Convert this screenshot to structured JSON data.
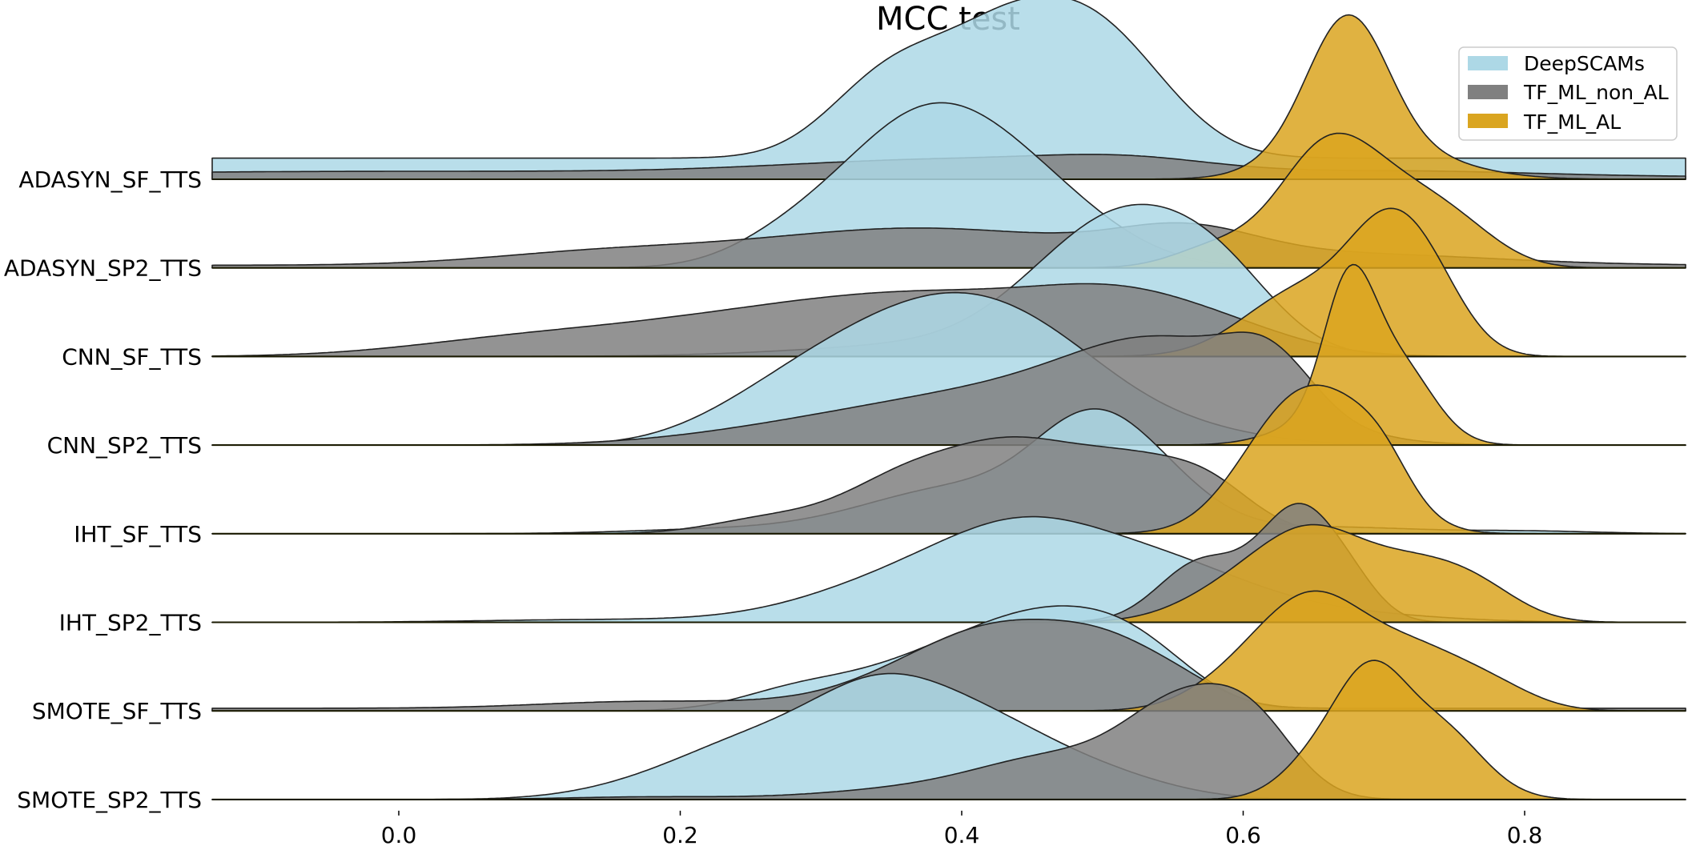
{
  "chart_data": {
    "type": "ridgeline-kde",
    "title": "MCC test",
    "xlabel": "",
    "ylabel": "",
    "xlim": [
      -0.13,
      0.91
    ],
    "xticks": [
      0.0,
      0.2,
      0.4,
      0.6,
      0.8
    ],
    "xtick_labels": [
      "0.0",
      "0.2",
      "0.4",
      "0.6",
      "0.8"
    ],
    "legend_position": "top-right",
    "grid": false,
    "series": [
      {
        "name": "DeepSCAMs",
        "color": "#add8e6"
      },
      {
        "name": "TF_ML_non_AL",
        "color": "#808080"
      },
      {
        "name": "TF_ML_AL",
        "color": "#daa520"
      }
    ],
    "rows": [
      {
        "label": "ADASYN_SF_TTS",
        "densities": {
          "DeepSCAMs": [
            [
              0.26,
              0.16,
              0.0
            ],
            [
              0.34,
              0.32,
              0.04
            ],
            [
              0.38,
              0.45,
              0.05
            ],
            [
              0.445,
              0.78,
              0.045
            ],
            [
              0.5,
              0.55,
              0.04
            ],
            [
              0.54,
              0.22,
              0.04
            ]
          ],
          "TF_ML_non_AL": [
            [
              -0.2,
              0.02,
              0.0
            ],
            [
              0.0,
              0.04,
              0.25
            ],
            [
              0.4,
              0.12,
              0.12
            ],
            [
              0.52,
              0.08,
              0.06
            ],
            [
              0.72,
              0.04,
              0.09
            ]
          ],
          "TF_ML_AL": [
            [
              0.675,
              1.0,
              0.028
            ],
            [
              0.7,
              0.22,
              0.05
            ],
            [
              0.64,
              0.1,
              0.03
            ]
          ]
        }
      },
      {
        "label": "ADASYN_SP2_TTS",
        "densities": {
          "DeepSCAMs": [
            [
              0.27,
              0.12,
              0.04
            ],
            [
              0.33,
              0.42,
              0.05
            ],
            [
              0.385,
              0.82,
              0.05
            ],
            [
              0.45,
              0.45,
              0.05
            ],
            [
              0.5,
              0.08,
              0.05
            ]
          ],
          "TF_ML_non_AL": [
            [
              0.0,
              0.02,
              0.0
            ],
            [
              0.14,
              0.08,
              0.08
            ],
            [
              0.37,
              0.28,
              0.12
            ],
            [
              0.56,
              0.2,
              0.05
            ],
            [
              0.68,
              0.08,
              0.1
            ]
          ],
          "TF_ML_AL": [
            [
              0.58,
              0.15,
              0.03
            ],
            [
              0.66,
              0.9,
              0.035
            ],
            [
              0.72,
              0.42,
              0.035
            ],
            [
              0.76,
              0.15,
              0.03
            ]
          ]
        }
      },
      {
        "label": "CNN_SF_TTS",
        "densities": {
          "DeepSCAMs": [
            [
              0.4,
              0.1,
              0.1
            ],
            [
              0.47,
              0.38,
              0.05
            ],
            [
              0.53,
              0.8,
              0.05
            ],
            [
              0.59,
              0.38,
              0.04
            ]
          ],
          "TF_ML_non_AL": [
            [
              0.08,
              0.1,
              0.08
            ],
            [
              0.24,
              0.24,
              0.1
            ],
            [
              0.4,
              0.4,
              0.1
            ],
            [
              0.52,
              0.3,
              0.06
            ],
            [
              0.6,
              0.1,
              0.05
            ]
          ],
          "TF_ML_AL": [
            [
              0.64,
              0.48,
              0.04
            ],
            [
              0.705,
              0.9,
              0.03
            ],
            [
              0.74,
              0.25,
              0.025
            ]
          ]
        }
      },
      {
        "label": "CNN_SP2_TTS",
        "densities": {
          "DeepSCAMs": [
            [
              0.25,
              0.18,
              0.05
            ],
            [
              0.32,
              0.55,
              0.055
            ],
            [
              0.4,
              0.8,
              0.055
            ],
            [
              0.47,
              0.4,
              0.05
            ],
            [
              0.54,
              0.15,
              0.06
            ]
          ],
          "TF_ML_non_AL": [
            [
              0.28,
              0.1,
              0.08
            ],
            [
              0.42,
              0.35,
              0.09
            ],
            [
              0.55,
              0.68,
              0.07
            ],
            [
              0.62,
              0.35,
              0.03
            ]
          ],
          "TF_ML_AL": [
            [
              0.675,
              1.02,
              0.018
            ],
            [
              0.71,
              0.6,
              0.025
            ],
            [
              0.65,
              0.15,
              0.03
            ]
          ]
        }
      },
      {
        "label": "IHT_SF_TTS",
        "densities": {
          "DeepSCAMs": [
            [
              0.22,
              0.03,
              0.06
            ],
            [
              0.4,
              0.35,
              0.07
            ],
            [
              0.49,
              0.65,
              0.04
            ],
            [
              0.54,
              0.3,
              0.04
            ],
            [
              0.66,
              0.05,
              0.06
            ],
            [
              0.8,
              0.02,
              0.05
            ]
          ],
          "TF_ML_non_AL": [
            [
              0.26,
              0.1,
              0.04
            ],
            [
              0.37,
              0.48,
              0.05
            ],
            [
              0.44,
              0.4,
              0.04
            ],
            [
              0.52,
              0.55,
              0.05
            ],
            [
              0.58,
              0.18,
              0.03
            ]
          ],
          "TF_ML_AL": [
            [
              0.625,
              0.65,
              0.035
            ],
            [
              0.67,
              0.72,
              0.035
            ],
            [
              0.7,
              0.2,
              0.02
            ]
          ]
        }
      },
      {
        "label": "IHT_SP2_TTS",
        "densities": {
          "DeepSCAMs": [
            [
              0.14,
              0.02,
              0.08
            ],
            [
              0.36,
              0.3,
              0.07
            ],
            [
              0.45,
              0.58,
              0.06
            ],
            [
              0.55,
              0.35,
              0.06
            ],
            [
              0.66,
              0.07,
              0.07
            ]
          ],
          "TF_ML_non_AL": [
            [
              0.57,
              0.45,
              0.03
            ],
            [
              0.64,
              0.85,
              0.028
            ],
            [
              0.68,
              0.15,
              0.02
            ]
          ],
          "TF_ML_AL": [
            [
              0.6,
              0.28,
              0.04
            ],
            [
              0.65,
              0.52,
              0.035
            ],
            [
              0.72,
              0.42,
              0.04
            ],
            [
              0.77,
              0.15,
              0.03
            ]
          ]
        }
      },
      {
        "label": "SMOTE_SF_TTS",
        "densities": {
          "DeepSCAMs": [
            [
              0.28,
              0.12,
              0.04
            ],
            [
              0.38,
              0.35,
              0.06
            ],
            [
              0.47,
              0.6,
              0.055
            ],
            [
              0.53,
              0.25,
              0.04
            ]
          ],
          "TF_ML_non_AL": [
            [
              0.0,
              0.02,
              0.0
            ],
            [
              0.17,
              0.05,
              0.07
            ],
            [
              0.28,
              0.03,
              0.05
            ],
            [
              0.37,
              0.25,
              0.05
            ],
            [
              0.44,
              0.5,
              0.05
            ],
            [
              0.51,
              0.35,
              0.04
            ],
            [
              0.56,
              0.1,
              0.03
            ]
          ],
          "TF_ML_AL": [
            [
              0.6,
              0.25,
              0.035
            ],
            [
              0.65,
              0.72,
              0.035
            ],
            [
              0.72,
              0.45,
              0.04
            ],
            [
              0.78,
              0.12,
              0.03
            ]
          ]
        }
      },
      {
        "label": "SMOTE_SP2_TTS",
        "densities": {
          "DeepSCAMs": [
            [
              0.18,
              0.1,
              0.05
            ],
            [
              0.25,
              0.35,
              0.05
            ],
            [
              0.34,
              0.75,
              0.05
            ],
            [
              0.42,
              0.45,
              0.05
            ],
            [
              0.5,
              0.16,
              0.05
            ]
          ],
          "TF_ML_non_AL": [
            [
              0.18,
              0.02,
              0.06
            ],
            [
              0.35,
              0.06,
              0.06
            ],
            [
              0.47,
              0.32,
              0.06
            ],
            [
              0.56,
              0.65,
              0.04
            ],
            [
              0.61,
              0.4,
              0.03
            ]
          ],
          "TF_ML_AL": [
            [
              0.69,
              0.85,
              0.025
            ],
            [
              0.74,
              0.52,
              0.03
            ],
            [
              0.65,
              0.25,
              0.025
            ]
          ]
        }
      }
    ]
  }
}
